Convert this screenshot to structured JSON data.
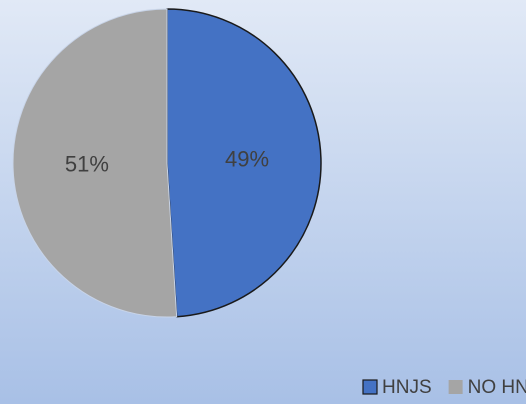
{
  "chart_data": {
    "type": "pie",
    "categories": [
      "HNJS",
      "NO HNJS"
    ],
    "values": [
      49,
      51
    ],
    "value_labels": [
      "49%",
      "51%"
    ],
    "colors": [
      "#4472c4",
      "#a5a5a5"
    ],
    "legend": "bottom-right"
  }
}
